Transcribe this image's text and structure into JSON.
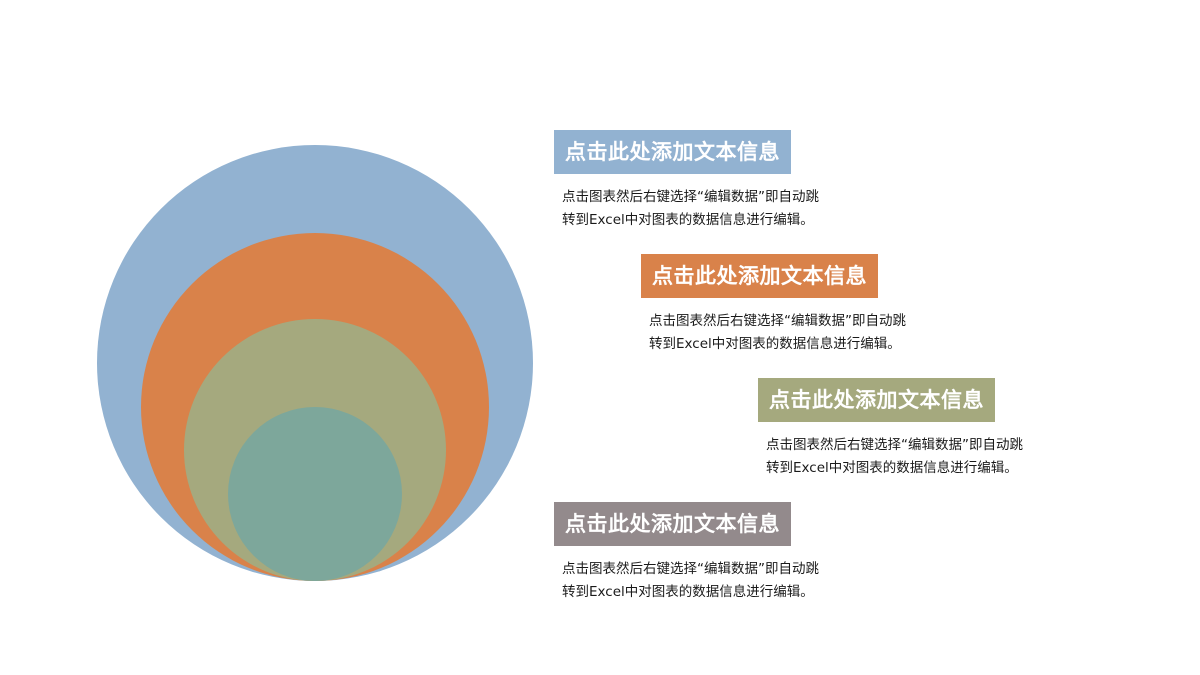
{
  "colors": {
    "blue": "#92b2d1",
    "orange": "#d9824a",
    "olive": "#a5a97e",
    "teal": "#7da79b",
    "gray": "#938a8c"
  },
  "circles": [
    {
      "name": "outer-blue-circle",
      "color": "#92b2d1"
    },
    {
      "name": "orange-circle",
      "color": "#d9824a"
    },
    {
      "name": "olive-circle",
      "color": "#a5a97e"
    },
    {
      "name": "inner-teal-circle",
      "color": "#7da79b"
    }
  ],
  "items": [
    {
      "title": "点击此处添加文本信息",
      "line1": "点击图表然后右键选择“编辑数据”即自动跳",
      "line2": "转到Excel中对图表的数据信息进行编辑。",
      "color": "#92b2d1"
    },
    {
      "title": "点击此处添加文本信息",
      "line1": "点击图表然后右键选择“编辑数据”即自动跳",
      "line2": "转到Excel中对图表的数据信息进行编辑。",
      "color": "#d9824a"
    },
    {
      "title": "点击此处添加文本信息",
      "line1": "点击图表然后右键选择“编辑数据”即自动跳",
      "line2": "转到Excel中对图表的数据信息进行编辑。",
      "color": "#a5a97e"
    },
    {
      "title": "点击此处添加文本信息",
      "line1": "点击图表然后右键选择“编辑数据”即自动跳",
      "line2": "转到Excel中对图表的数据信息进行编辑。",
      "color": "#938a8c"
    }
  ]
}
